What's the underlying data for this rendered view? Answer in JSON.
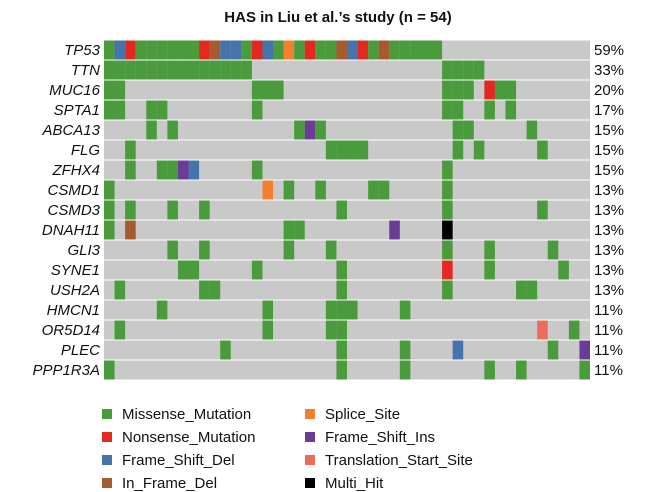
{
  "chart_data": {
    "type": "oncoplot",
    "title": "HAS in Liu et al.’s study (n = 54)",
    "categories": [
      "TP53",
      "TTN",
      "MUC16",
      "SPTA1",
      "ABCA13",
      "FLG",
      "ZFHX4",
      "CSMD1",
      "CSMD3",
      "DNAH11",
      "GLI3",
      "SYNE1",
      "USH2A",
      "HMCN1",
      "OR5D14",
      "PLEC",
      "PPP1R3A"
    ],
    "values": [
      59,
      33,
      20,
      17,
      15,
      15,
      15,
      13,
      13,
      13,
      13,
      13,
      13,
      11,
      11,
      11,
      11
    ],
    "value_labels": [
      "59%",
      "33%",
      "20%",
      "17%",
      "15%",
      "15%",
      "15%",
      "13%",
      "13%",
      "13%",
      "13%",
      "13%",
      "13%",
      "11%",
      "11%",
      "11%",
      "11%"
    ],
    "legend": [
      {
        "name": "Missense_Mutation",
        "color": "#4a9b3c"
      },
      {
        "name": "Nonsense_Mutation",
        "color": "#e2281f"
      },
      {
        "name": "Frame_Shift_Del",
        "color": "#4474aa"
      },
      {
        "name": "In_Frame_Del",
        "color": "#a65a30"
      },
      {
        "name": "Splice_Site",
        "color": "#f47f2e"
      },
      {
        "name": "Frame_Shift_Ins",
        "color": "#6a3c96"
      },
      {
        "name": "Translation_Start_Site",
        "color": "#ec6c5c"
      },
      {
        "name": "Multi_Hit",
        "color": "#000000"
      }
    ],
    "matrix": [
      [
        0,
        2,
        1,
        0,
        0,
        0,
        0,
        0,
        0,
        1,
        3,
        2,
        2,
        0,
        1,
        2,
        0,
        4,
        0,
        1,
        0,
        0,
        3,
        2,
        1,
        0,
        3,
        0,
        0,
        0,
        0,
        0,
        null,
        null,
        null,
        null,
        null,
        null,
        null,
        null,
        null,
        null,
        null,
        null,
        null,
        null
      ],
      [
        0,
        0,
        0,
        0,
        0,
        0,
        0,
        0,
        0,
        0,
        0,
        0,
        0,
        0,
        null,
        null,
        null,
        null,
        null,
        null,
        null,
        null,
        null,
        null,
        null,
        null,
        null,
        null,
        null,
        null,
        null,
        null,
        0,
        0,
        0,
        0,
        null,
        null,
        null,
        null,
        null,
        null,
        null,
        null,
        null,
        null
      ],
      [
        0,
        0,
        null,
        null,
        null,
        null,
        null,
        null,
        null,
        null,
        null,
        null,
        null,
        null,
        0,
        0,
        0,
        null,
        null,
        null,
        null,
        null,
        null,
        null,
        null,
        null,
        null,
        null,
        null,
        null,
        null,
        null,
        0,
        0,
        0,
        null,
        1,
        0,
        0,
        null,
        null,
        null,
        null,
        null,
        null,
        null
      ],
      [
        0,
        0,
        null,
        null,
        0,
        0,
        null,
        null,
        null,
        null,
        null,
        null,
        null,
        null,
        0,
        null,
        null,
        null,
        null,
        null,
        null,
        null,
        null,
        null,
        null,
        null,
        null,
        null,
        null,
        null,
        null,
        null,
        0,
        0,
        null,
        null,
        0,
        null,
        0,
        null,
        null,
        null,
        null,
        null,
        null,
        null
      ],
      [
        null,
        null,
        null,
        null,
        0,
        null,
        0,
        null,
        null,
        null,
        null,
        null,
        null,
        null,
        null,
        null,
        null,
        null,
        0,
        5,
        0,
        null,
        null,
        null,
        null,
        null,
        null,
        null,
        null,
        null,
        null,
        null,
        null,
        0,
        0,
        null,
        null,
        null,
        null,
        null,
        0,
        null,
        null,
        null,
        null,
        null
      ],
      [
        null,
        null,
        0,
        null,
        null,
        null,
        null,
        null,
        null,
        null,
        null,
        null,
        null,
        null,
        null,
        null,
        null,
        null,
        null,
        null,
        null,
        0,
        0,
        0,
        0,
        null,
        null,
        null,
        null,
        null,
        null,
        null,
        null,
        0,
        null,
        0,
        null,
        null,
        null,
        null,
        null,
        0,
        null,
        null,
        null,
        null
      ],
      [
        null,
        null,
        0,
        null,
        null,
        0,
        0,
        5,
        2,
        null,
        null,
        null,
        null,
        null,
        0,
        null,
        null,
        null,
        null,
        null,
        null,
        null,
        null,
        null,
        null,
        null,
        null,
        null,
        null,
        null,
        null,
        null,
        0,
        null,
        null,
        null,
        null,
        null,
        null,
        null,
        null,
        null,
        null,
        null,
        null,
        null
      ],
      [
        0,
        null,
        null,
        null,
        null,
        null,
        null,
        null,
        null,
        null,
        null,
        null,
        null,
        null,
        null,
        4,
        null,
        0,
        null,
        null,
        0,
        null,
        null,
        null,
        null,
        0,
        0,
        null,
        null,
        null,
        null,
        null,
        0,
        null,
        null,
        null,
        null,
        null,
        null,
        null,
        null,
        null,
        null,
        null,
        null,
        null
      ],
      [
        0,
        null,
        0,
        null,
        null,
        null,
        0,
        null,
        null,
        0,
        null,
        null,
        null,
        null,
        null,
        null,
        null,
        null,
        null,
        null,
        null,
        null,
        0,
        null,
        null,
        null,
        null,
        null,
        null,
        null,
        null,
        null,
        0,
        null,
        null,
        null,
        null,
        null,
        null,
        null,
        null,
        0,
        null,
        null,
        null,
        null
      ],
      [
        0,
        null,
        3,
        null,
        null,
        null,
        null,
        null,
        null,
        null,
        null,
        null,
        null,
        null,
        null,
        null,
        null,
        0,
        0,
        null,
        null,
        null,
        null,
        null,
        null,
        null,
        null,
        5,
        null,
        null,
        null,
        null,
        7,
        null,
        null,
        null,
        null,
        null,
        null,
        null,
        null,
        null,
        null,
        null,
        null,
        null
      ],
      [
        null,
        null,
        null,
        null,
        null,
        null,
        0,
        null,
        null,
        0,
        null,
        null,
        null,
        null,
        null,
        null,
        null,
        0,
        null,
        null,
        null,
        0,
        null,
        null,
        null,
        null,
        null,
        null,
        null,
        null,
        null,
        null,
        0,
        null,
        null,
        null,
        0,
        null,
        null,
        null,
        null,
        null,
        0,
        null,
        null,
        null
      ],
      [
        null,
        null,
        null,
        null,
        null,
        null,
        null,
        0,
        0,
        null,
        null,
        null,
        null,
        null,
        0,
        null,
        null,
        null,
        null,
        null,
        null,
        null,
        0,
        null,
        null,
        null,
        null,
        null,
        null,
        null,
        null,
        null,
        1,
        null,
        null,
        null,
        0,
        null,
        null,
        null,
        null,
        null,
        null,
        0,
        null,
        null
      ],
      [
        null,
        0,
        null,
        null,
        null,
        null,
        null,
        null,
        null,
        0,
        0,
        null,
        null,
        null,
        null,
        null,
        null,
        null,
        null,
        null,
        null,
        null,
        0,
        null,
        null,
        null,
        null,
        null,
        null,
        null,
        null,
        null,
        0,
        null,
        null,
        null,
        null,
        null,
        null,
        0,
        0,
        null,
        null,
        null,
        null,
        null
      ],
      [
        null,
        null,
        null,
        null,
        null,
        0,
        null,
        null,
        null,
        null,
        null,
        null,
        null,
        null,
        null,
        0,
        null,
        null,
        null,
        null,
        null,
        0,
        0,
        0,
        null,
        null,
        null,
        null,
        0,
        null,
        null,
        null,
        null,
        null,
        null,
        null,
        null,
        null,
        null,
        null,
        null,
        null,
        null,
        null,
        null,
        null
      ],
      [
        null,
        0,
        null,
        null,
        null,
        null,
        null,
        null,
        null,
        null,
        null,
        null,
        null,
        null,
        null,
        0,
        null,
        null,
        null,
        null,
        null,
        0,
        0,
        null,
        null,
        null,
        null,
        null,
        null,
        null,
        null,
        null,
        null,
        null,
        null,
        null,
        null,
        null,
        null,
        null,
        null,
        6,
        null,
        null,
        0,
        null
      ],
      [
        null,
        null,
        null,
        null,
        null,
        null,
        null,
        null,
        null,
        null,
        null,
        0,
        null,
        null,
        null,
        null,
        null,
        null,
        null,
        null,
        null,
        null,
        0,
        null,
        null,
        null,
        null,
        null,
        0,
        null,
        null,
        null,
        null,
        2,
        null,
        null,
        null,
        null,
        null,
        null,
        null,
        null,
        0,
        null,
        null,
        5
      ],
      [
        0,
        null,
        null,
        null,
        null,
        null,
        null,
        null,
        null,
        null,
        null,
        null,
        null,
        null,
        null,
        null,
        null,
        null,
        null,
        null,
        null,
        null,
        0,
        null,
        null,
        null,
        null,
        null,
        0,
        null,
        null,
        null,
        null,
        null,
        null,
        null,
        0,
        null,
        null,
        0,
        null,
        null,
        null,
        null,
        null,
        0
      ]
    ]
  }
}
